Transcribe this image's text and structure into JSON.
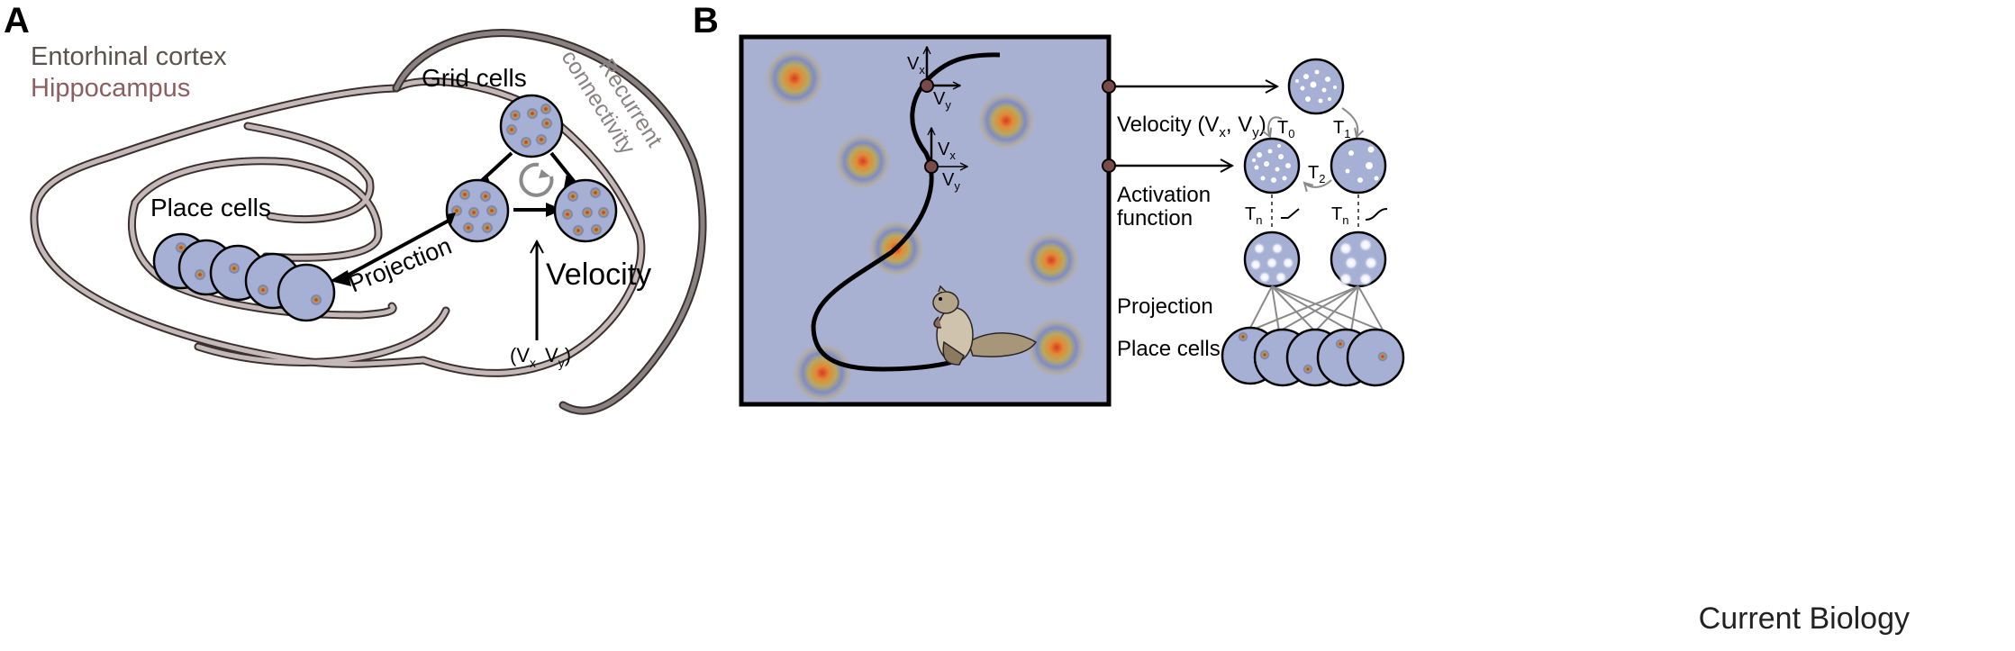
{
  "panel_a": {
    "letter": "A",
    "legend": {
      "entorhinal": "Entorhinal cortex",
      "hippocampus": "Hippocampus",
      "entorhinal_color": "#5b5350",
      "hippocampus_color": "#8c5e60"
    },
    "grid_cells_label": "Grid cells",
    "recurrent_line1": "Recurrent",
    "recurrent_line2": "connectivity",
    "place_cells_label": "Place cells",
    "projection_label": "Projection",
    "velocity_label": "Velocity",
    "velocity_vars": {
      "open": "(V",
      "x_sub": "x",
      "mid": "V",
      "y_sub": "y",
      "close": ")"
    },
    "rotation_icon": "circular-arrow-icon"
  },
  "panel_b": {
    "letter": "B",
    "arena": {
      "v1": {
        "x": "V",
        "x_sub": "x",
        "y": "V",
        "y_sub": "y"
      },
      "v2": {
        "x": "V",
        "x_sub": "x",
        "y": "V",
        "y_sub": "y"
      },
      "animal_icon": "squirrel-icon"
    },
    "velocity": {
      "text": "Velocity (V",
      "x_sub": "x",
      "comma": ", V",
      "y_sub": "y",
      "close": ")"
    },
    "activation_line1": "Activation",
    "activation_line2": "function",
    "projection_label": "Projection",
    "place_cells_label": "Place cells",
    "t0": "T",
    "t0_sub": "0",
    "t1": "T",
    "t1_sub": "1",
    "t2": "T",
    "t2_sub": "2",
    "tn_left": "T",
    "tn_left_sub": "n",
    "tn_right": "T",
    "tn_right_sub": "n"
  },
  "footer": {
    "journal": "Current Biology"
  },
  "colors": {
    "cell_fill": "#a6b0d4",
    "arena_fill": "#a8b1d2",
    "node_fill": "#7a4a4a",
    "wall_fill": "#c5b8b8"
  }
}
